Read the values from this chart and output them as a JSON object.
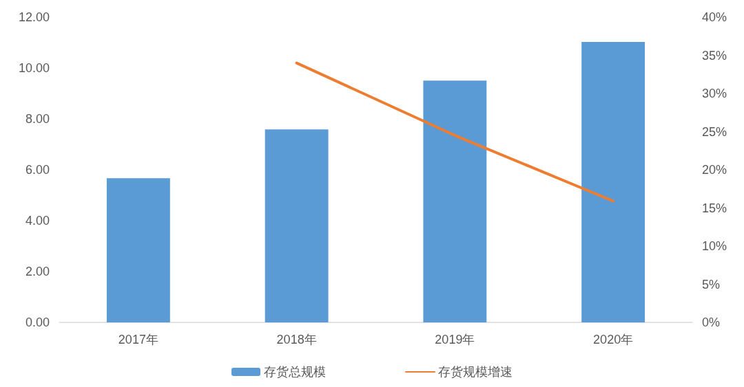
{
  "chart_data": {
    "type": "bar",
    "categories": [
      "2017年",
      "2018年",
      "2019年",
      "2020年"
    ],
    "series": [
      {
        "name": "存货总规模",
        "color": "#5b9bd5",
        "values": [
          5.67,
          7.59,
          9.51,
          11.03
        ]
      },
      {
        "name": "存货规模增速",
        "type": "line",
        "axis": "y2",
        "color": "#ed7d31",
        "values": [
          null,
          34,
          24.5,
          15.9
        ]
      }
    ],
    "ylim": [
      0,
      12
    ],
    "yticks": [
      {
        "value": 0,
        "label": "0.00"
      },
      {
        "value": 2,
        "label": "2.00"
      },
      {
        "value": 4,
        "label": "4.00"
      },
      {
        "value": 6,
        "label": "6.00"
      },
      {
        "value": 8,
        "label": "8.00"
      },
      {
        "value": 10,
        "label": "10.00"
      },
      {
        "value": 12,
        "label": "12.00"
      }
    ],
    "y2lim": [
      0,
      40
    ],
    "y2ticks": [
      {
        "value": 0,
        "label": "0%"
      },
      {
        "value": 5,
        "label": "5%"
      },
      {
        "value": 10,
        "label": "10%"
      },
      {
        "value": 15,
        "label": "15%"
      },
      {
        "value": 20,
        "label": "20%"
      },
      {
        "value": 25,
        "label": "25%"
      },
      {
        "value": 30,
        "label": "30%"
      },
      {
        "value": 35,
        "label": "35%"
      },
      {
        "value": 40,
        "label": "40%"
      }
    ],
    "grid": false,
    "legend": "bottom",
    "marker": "none",
    "line_style": "solid"
  }
}
